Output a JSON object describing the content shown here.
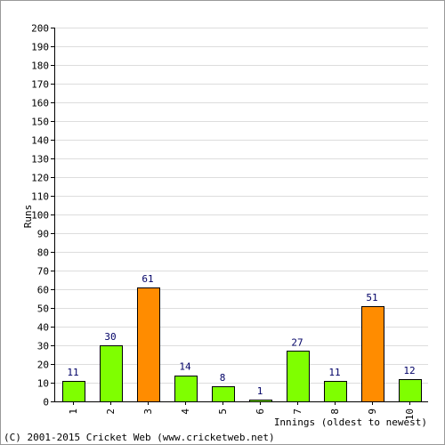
{
  "chart_data": {
    "type": "bar",
    "title": "",
    "xlabel": "Innings (oldest to newest)",
    "ylabel": "Runs",
    "ylim": [
      0,
      200
    ],
    "ytick_step": 10,
    "grid": "horizontal",
    "legend": "none",
    "categories": [
      "1",
      "2",
      "3",
      "4",
      "5",
      "6",
      "7",
      "8",
      "9",
      "10"
    ],
    "values": [
      11,
      30,
      61,
      14,
      8,
      1,
      27,
      11,
      51,
      12
    ],
    "bar_colors": [
      "#7fff00",
      "#7fff00",
      "#ff8c00",
      "#7fff00",
      "#7fff00",
      "#7fff00",
      "#7fff00",
      "#7fff00",
      "#ff8c00",
      "#7fff00"
    ],
    "colors": {
      "normal": "#7fff00",
      "highlight": "#ff8c00",
      "bar_stroke": "#000000",
      "grid": "#dddddd",
      "data_label": "#000066"
    }
  },
  "footer": {
    "copyright": "(C) 2001-2015 Cricket Web (www.cricketweb.net)"
  }
}
